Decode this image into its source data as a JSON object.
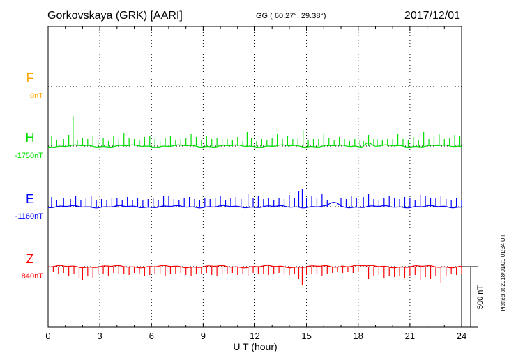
{
  "header": {
    "station": "Gorkovskaya (GRK)  [AARI]",
    "coords": "GG ( 60.27°,  29.38°)",
    "date": "2017/12/01"
  },
  "footer": {
    "plotted": "Plotted at 2018/01/01 01:34 UT"
  },
  "chart_data": {
    "type": "line",
    "xlabel": "U T (hour)",
    "x_ticks": [
      "0",
      "3",
      "6",
      "9",
      "12",
      "15",
      "18",
      "21",
      "24"
    ],
    "xlim": [
      0,
      24
    ],
    "scale_bar": "500 nT",
    "grid": true,
    "series": [
      {
        "name": "F",
        "baseline": "0nT",
        "color": "#FFA500",
        "values": []
      },
      {
        "name": "H",
        "baseline": "-1750nT",
        "color": "#00DD00",
        "spike_direction": "up",
        "spikes": [
          [
            0.2,
            14
          ],
          [
            0.5,
            9
          ],
          [
            0.9,
            11
          ],
          [
            1.2,
            16
          ],
          [
            1.45,
            44
          ],
          [
            1.7,
            9
          ],
          [
            2.0,
            12
          ],
          [
            2.3,
            10
          ],
          [
            2.6,
            15
          ],
          [
            2.9,
            9
          ],
          [
            3.2,
            12
          ],
          [
            3.5,
            8
          ],
          [
            3.8,
            14
          ],
          [
            4.1,
            10
          ],
          [
            4.4,
            19
          ],
          [
            4.7,
            12
          ],
          [
            5.0,
            11
          ],
          [
            5.3,
            9
          ],
          [
            5.6,
            13
          ],
          [
            5.9,
            14
          ],
          [
            6.2,
            10
          ],
          [
            6.5,
            8
          ],
          [
            6.8,
            12
          ],
          [
            7.1,
            15
          ],
          [
            7.4,
            9
          ],
          [
            7.7,
            10
          ],
          [
            8.0,
            12
          ],
          [
            8.3,
            18
          ],
          [
            8.6,
            13
          ],
          [
            8.9,
            9
          ],
          [
            9.2,
            14
          ],
          [
            9.5,
            10
          ],
          [
            9.8,
            12
          ],
          [
            10.1,
            10
          ],
          [
            10.4,
            11
          ],
          [
            10.7,
            9
          ],
          [
            11.0,
            13
          ],
          [
            11.3,
            8
          ],
          [
            11.55,
            20
          ],
          [
            11.8,
            12
          ],
          [
            12.1,
            8
          ],
          [
            12.4,
            11
          ],
          [
            12.7,
            9
          ],
          [
            13.0,
            12
          ],
          [
            13.3,
            17
          ],
          [
            13.6,
            10
          ],
          [
            13.9,
            14
          ],
          [
            14.2,
            11
          ],
          [
            14.5,
            12
          ],
          [
            14.8,
            23
          ],
          [
            15.1,
            9
          ],
          [
            15.4,
            11
          ],
          [
            15.7,
            10
          ],
          [
            16.0,
            18
          ],
          [
            16.3,
            12
          ],
          [
            16.6,
            9
          ],
          [
            16.9,
            13
          ],
          [
            17.2,
            11
          ],
          [
            17.5,
            8
          ],
          [
            17.8,
            10
          ],
          [
            18.1,
            9
          ],
          [
            18.3,
            7
          ],
          [
            18.6,
            16
          ],
          [
            18.9,
            10
          ],
          [
            19.1,
            11
          ],
          [
            19.4,
            9
          ],
          [
            19.7,
            10
          ],
          [
            20.0,
            11
          ],
          [
            20.3,
            18
          ],
          [
            20.6,
            10
          ],
          [
            20.9,
            9
          ],
          [
            21.2,
            13
          ],
          [
            21.5,
            9
          ],
          [
            21.8,
            21
          ],
          [
            22.1,
            11
          ],
          [
            22.4,
            15
          ],
          [
            22.7,
            18
          ],
          [
            23.0,
            10
          ],
          [
            23.3,
            12
          ],
          [
            23.6,
            16
          ],
          [
            23.9,
            14
          ]
        ]
      },
      {
        "name": "E",
        "baseline": "-1160nT",
        "color": "#0000FF",
        "spike_direction": "up",
        "spikes": [
          [
            0.2,
            14
          ],
          [
            0.5,
            9
          ],
          [
            0.9,
            13
          ],
          [
            1.3,
            11
          ],
          [
            1.6,
            15
          ],
          [
            1.9,
            9
          ],
          [
            2.2,
            12
          ],
          [
            2.5,
            16
          ],
          [
            2.8,
            10
          ],
          [
            3.1,
            11
          ],
          [
            3.4,
            9
          ],
          [
            3.7,
            13
          ],
          [
            4.0,
            12
          ],
          [
            4.3,
            9
          ],
          [
            4.6,
            14
          ],
          [
            4.9,
            10
          ],
          [
            5.2,
            12
          ],
          [
            5.5,
            9
          ],
          [
            5.8,
            11
          ],
          [
            6.1,
            12
          ],
          [
            6.4,
            10
          ],
          [
            6.7,
            15
          ],
          [
            7.0,
            16
          ],
          [
            7.3,
            11
          ],
          [
            7.6,
            10
          ],
          [
            7.9,
            12
          ],
          [
            8.2,
            14
          ],
          [
            8.5,
            11
          ],
          [
            8.8,
            10
          ],
          [
            9.1,
            12
          ],
          [
            9.4,
            11
          ],
          [
            9.7,
            13
          ],
          [
            10.0,
            15
          ],
          [
            10.3,
            10
          ],
          [
            10.6,
            12
          ],
          [
            10.9,
            14
          ],
          [
            11.2,
            11
          ],
          [
            11.6,
            18
          ],
          [
            11.9,
            12
          ],
          [
            12.2,
            16
          ],
          [
            12.5,
            11
          ],
          [
            12.8,
            13
          ],
          [
            13.1,
            10
          ],
          [
            13.4,
            12
          ],
          [
            13.7,
            11
          ],
          [
            14.0,
            17
          ],
          [
            14.3,
            12
          ],
          [
            14.55,
            22
          ],
          [
            14.75,
            26
          ],
          [
            15.0,
            12
          ],
          [
            15.3,
            15
          ],
          [
            15.6,
            13
          ],
          [
            15.9,
            19
          ],
          [
            16.2,
            10
          ],
          [
            17.0,
            13
          ],
          [
            17.3,
            11
          ],
          [
            17.6,
            15
          ],
          [
            17.9,
            12
          ],
          [
            18.3,
            14
          ],
          [
            18.6,
            18
          ],
          [
            18.9,
            11
          ],
          [
            19.2,
            9
          ],
          [
            19.5,
            12
          ],
          [
            19.8,
            16
          ],
          [
            20.1,
            13
          ],
          [
            20.4,
            11
          ],
          [
            20.7,
            14
          ],
          [
            21.0,
            12
          ],
          [
            21.3,
            10
          ],
          [
            21.6,
            17
          ],
          [
            21.9,
            16
          ],
          [
            22.2,
            13
          ],
          [
            22.5,
            12
          ],
          [
            22.8,
            15
          ],
          [
            23.1,
            11
          ],
          [
            23.4,
            10
          ],
          [
            23.7,
            12
          ],
          [
            24.0,
            10
          ]
        ]
      },
      {
        "name": "Z",
        "baseline": "840nT",
        "color": "#FF0000",
        "spike_direction": "down",
        "spikes": [
          [
            0.3,
            8
          ],
          [
            0.6,
            10
          ],
          [
            0.9,
            9
          ],
          [
            1.2,
            13
          ],
          [
            1.5,
            10
          ],
          [
            1.8,
            16
          ],
          [
            2.0,
            19
          ],
          [
            2.3,
            13
          ],
          [
            2.6,
            17
          ],
          [
            2.9,
            11
          ],
          [
            3.2,
            10
          ],
          [
            3.5,
            14
          ],
          [
            3.8,
            9
          ],
          [
            4.1,
            11
          ],
          [
            4.4,
            10
          ],
          [
            4.7,
            12
          ],
          [
            5.0,
            9
          ],
          [
            5.3,
            11
          ],
          [
            5.6,
            13
          ],
          [
            5.9,
            12
          ],
          [
            6.2,
            10
          ],
          [
            6.5,
            11
          ],
          [
            6.8,
            13
          ],
          [
            7.1,
            10
          ],
          [
            7.4,
            11
          ],
          [
            7.7,
            9
          ],
          [
            8.0,
            12
          ],
          [
            8.3,
            14
          ],
          [
            8.6,
            10
          ],
          [
            8.9,
            11
          ],
          [
            9.2,
            9
          ],
          [
            9.5,
            12
          ],
          [
            9.8,
            13
          ],
          [
            10.1,
            10
          ],
          [
            10.4,
            11
          ],
          [
            10.7,
            9
          ],
          [
            11.0,
            12
          ],
          [
            11.3,
            10
          ],
          [
            11.6,
            13
          ],
          [
            11.9,
            9
          ],
          [
            12.2,
            11
          ],
          [
            12.5,
            10
          ],
          [
            12.8,
            12
          ],
          [
            13.1,
            11
          ],
          [
            13.4,
            9
          ],
          [
            13.7,
            10
          ],
          [
            14.0,
            12
          ],
          [
            14.3,
            11
          ],
          [
            14.55,
            18
          ],
          [
            14.75,
            26
          ],
          [
            15.0,
            12
          ],
          [
            15.3,
            10
          ],
          [
            15.6,
            11
          ],
          [
            15.9,
            13
          ],
          [
            16.2,
            10
          ],
          [
            16.5,
            9
          ],
          [
            16.8,
            8
          ],
          [
            17.1,
            9
          ],
          [
            17.4,
            8
          ],
          [
            17.7,
            9
          ],
          [
            18.0,
            8
          ],
          [
            18.6,
            18
          ],
          [
            18.9,
            14
          ],
          [
            19.2,
            12
          ],
          [
            19.5,
            16
          ],
          [
            19.8,
            13
          ],
          [
            20.1,
            15
          ],
          [
            20.4,
            14
          ],
          [
            20.7,
            17
          ],
          [
            21.0,
            13
          ],
          [
            21.3,
            12
          ],
          [
            21.6,
            19
          ],
          [
            21.9,
            15
          ],
          [
            22.2,
            18
          ],
          [
            22.5,
            13
          ],
          [
            22.8,
            24
          ],
          [
            23.1,
            14
          ],
          [
            23.4,
            11
          ],
          [
            23.7,
            12
          ],
          [
            24.0,
            10
          ]
        ]
      }
    ]
  }
}
